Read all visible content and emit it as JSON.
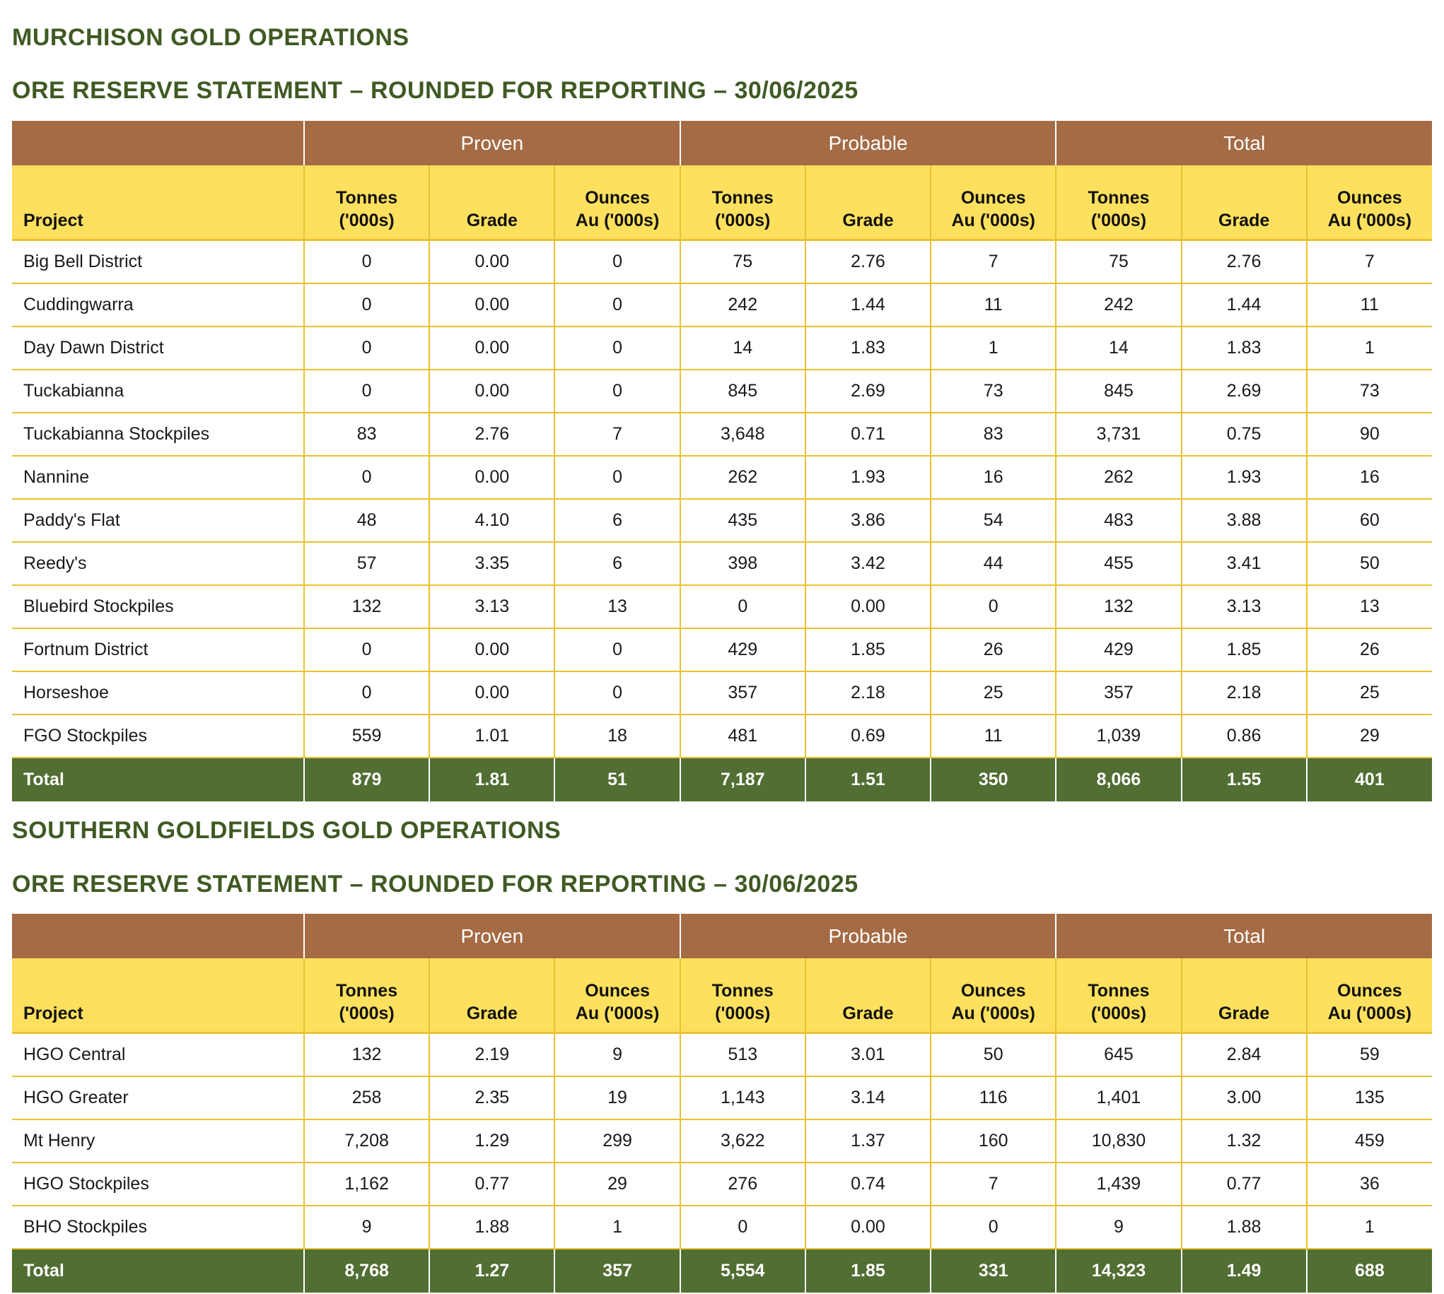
{
  "sections": [
    {
      "heading": "MURCHISON GOLD OPERATIONS",
      "subheading": "ORE RESERVE STATEMENT – ROUNDED FOR REPORTING – 30/06/2025",
      "groups": [
        "Proven",
        "Probable",
        "Total"
      ],
      "columns": [
        "Project",
        "Tonnes|('000s)",
        "Grade",
        "Ounces|Au ('000s)",
        "Tonnes|('000s)",
        "Grade",
        "Ounces|Au ('000s)",
        "Tonnes|('000s)",
        "Grade",
        "Ounces|Au ('000s)"
      ],
      "rows": [
        [
          "Big Bell District",
          "0",
          "0.00",
          "0",
          "75",
          "2.76",
          "7",
          "75",
          "2.76",
          "7"
        ],
        [
          "Cuddingwarra",
          "0",
          "0.00",
          "0",
          "242",
          "1.44",
          "11",
          "242",
          "1.44",
          "11"
        ],
        [
          "Day Dawn District",
          "0",
          "0.00",
          "0",
          "14",
          "1.83",
          "1",
          "14",
          "1.83",
          "1"
        ],
        [
          "Tuckabianna",
          "0",
          "0.00",
          "0",
          "845",
          "2.69",
          "73",
          "845",
          "2.69",
          "73"
        ],
        [
          "Tuckabianna Stockpiles",
          "83",
          "2.76",
          "7",
          "3,648",
          "0.71",
          "83",
          "3,731",
          "0.75",
          "90"
        ],
        [
          "Nannine",
          "0",
          "0.00",
          "0",
          "262",
          "1.93",
          "16",
          "262",
          "1.93",
          "16"
        ],
        [
          "Paddy's Flat",
          "48",
          "4.10",
          "6",
          "435",
          "3.86",
          "54",
          "483",
          "3.88",
          "60"
        ],
        [
          "Reedy's",
          "57",
          "3.35",
          "6",
          "398",
          "3.42",
          "44",
          "455",
          "3.41",
          "50"
        ],
        [
          "Bluebird Stockpiles",
          "132",
          "3.13",
          "13",
          "0",
          "0.00",
          "0",
          "132",
          "3.13",
          "13"
        ],
        [
          "Fortnum District",
          "0",
          "0.00",
          "0",
          "429",
          "1.85",
          "26",
          "429",
          "1.85",
          "26"
        ],
        [
          "Horseshoe",
          "0",
          "0.00",
          "0",
          "357",
          "2.18",
          "25",
          "357",
          "2.18",
          "25"
        ],
        [
          "FGO Stockpiles",
          "559",
          "1.01",
          "18",
          "481",
          "0.69",
          "11",
          "1,039",
          "0.86",
          "29"
        ]
      ],
      "total": [
        "Total",
        "879",
        "1.81",
        "51",
        "7,187",
        "1.51",
        "350",
        "8,066",
        "1.55",
        "401"
      ]
    },
    {
      "heading": "SOUTHERN GOLDFIELDS GOLD OPERATIONS",
      "subheading": "ORE RESERVE STATEMENT – ROUNDED FOR REPORTING – 30/06/2025",
      "groups": [
        "Proven",
        "Probable",
        "Total"
      ],
      "columns": [
        "Project",
        "Tonnes|('000s)",
        "Grade",
        "Ounces|Au ('000s)",
        "Tonnes|('000s)",
        "Grade",
        "Ounces|Au ('000s)",
        "Tonnes|('000s)",
        "Grade",
        "Ounces|Au ('000s)"
      ],
      "rows": [
        [
          "HGO Central",
          "132",
          "2.19",
          "9",
          "513",
          "3.01",
          "50",
          "645",
          "2.84",
          "59"
        ],
        [
          "HGO Greater",
          "258",
          "2.35",
          "19",
          "1,143",
          "3.14",
          "116",
          "1,401",
          "3.00",
          "135"
        ],
        [
          "Mt Henry",
          "7,208",
          "1.29",
          "299",
          "3,622",
          "1.37",
          "160",
          "10,830",
          "1.32",
          "459"
        ],
        [
          "HGO Stockpiles",
          "1,162",
          "0.77",
          "29",
          "276",
          "0.74",
          "7",
          "1,439",
          "0.77",
          "36"
        ],
        [
          "BHO Stockpiles",
          "9",
          "1.88",
          "1",
          "0",
          "0.00",
          "0",
          "9",
          "1.88",
          "1"
        ]
      ],
      "total": [
        "Total",
        "8,768",
        "1.27",
        "357",
        "5,554",
        "1.85",
        "331",
        "14,323",
        "1.49",
        "688"
      ]
    }
  ]
}
